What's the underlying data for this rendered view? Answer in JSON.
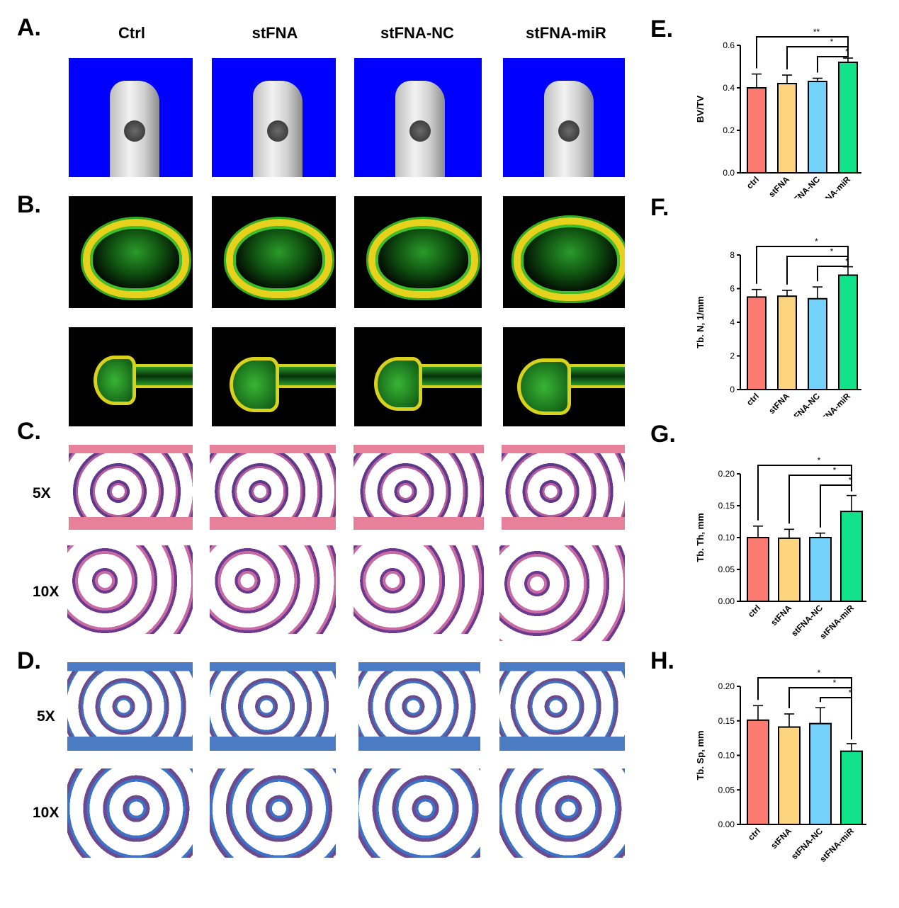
{
  "panel_letters": {
    "a": "A.",
    "b": "B.",
    "c": "C.",
    "d": "D.",
    "e": "E.",
    "f": "F.",
    "g": "G.",
    "h": "H."
  },
  "columns": [
    "Ctrl",
    "stFNA",
    "stFNA-NC",
    "stFNA-miR"
  ],
  "magnifications": {
    "c_low": "5X",
    "c_high": "10X",
    "d_low": "5X",
    "d_high": "10X"
  },
  "colors": {
    "ctrl": "#fb7a72",
    "stFNA": "#fdd57e",
    "stFNA-NC": "#74d2fa",
    "stFNA-miR": "#12e38a"
  },
  "chart_data": [
    {
      "type": "bar",
      "panel": "E",
      "categories": [
        "ctrl",
        "stFNA",
        "stFNA-NC",
        "stFNA-miR"
      ],
      "values": [
        0.4,
        0.42,
        0.43,
        0.52
      ],
      "errors": [
        0.065,
        0.04,
        0.015,
        0.02
      ],
      "ylabel": "BV/TV",
      "ylim": [
        0,
        0.6
      ],
      "yticks": [
        "0.0",
        "0.2",
        "0.4",
        "0.6"
      ],
      "significance": [
        "**",
        "*",
        "*"
      ]
    },
    {
      "type": "bar",
      "panel": "F",
      "categories": [
        "ctrl",
        "stFNA",
        "stFNA-NC",
        "stFNA-miR"
      ],
      "values": [
        5.5,
        5.55,
        5.4,
        6.8
      ],
      "errors": [
        0.45,
        0.35,
        0.7,
        0.5
      ],
      "ylabel": "Tb. N, 1/mm",
      "ylim": [
        0,
        8
      ],
      "yticks": [
        "0",
        "2",
        "4",
        "6",
        "8"
      ],
      "significance": [
        "*",
        "*",
        "*"
      ]
    },
    {
      "type": "bar",
      "panel": "G",
      "categories": [
        "ctrl",
        "stFNA",
        "stFNA-NC",
        "stFNA-miR"
      ],
      "values": [
        0.1,
        0.099,
        0.1,
        0.141
      ],
      "errors": [
        0.018,
        0.014,
        0.007,
        0.025
      ],
      "ylabel": "Tb. Th, mm",
      "ylim": [
        0,
        0.2
      ],
      "yticks": [
        "0.00",
        "0.05",
        "0.10",
        "0.15",
        "0.20"
      ],
      "significance": [
        "*",
        "*",
        "*"
      ]
    },
    {
      "type": "bar",
      "panel": "H",
      "categories": [
        "ctrl",
        "stFNA",
        "stFNA-NC",
        "stFNA-miR"
      ],
      "values": [
        0.151,
        0.141,
        0.146,
        0.106
      ],
      "errors": [
        0.021,
        0.019,
        0.023,
        0.011
      ],
      "ylabel": "Tb. Sp, mm",
      "ylim": [
        0,
        0.2
      ],
      "yticks": [
        "0.00",
        "0.05",
        "0.10",
        "0.15",
        "0.20"
      ],
      "significance": [
        "*",
        "*",
        "*"
      ]
    }
  ]
}
